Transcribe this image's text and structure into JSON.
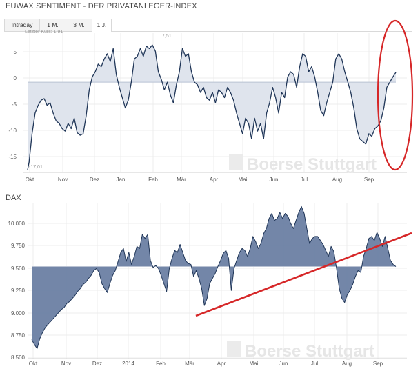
{
  "header": {
    "title": "EUWAX SENTIMENT - DER PRIVATANLEGER-INDEX"
  },
  "tabs": [
    {
      "label": "Intraday",
      "active": false
    },
    {
      "label": "1 M.",
      "active": false
    },
    {
      "label": "3 M.",
      "active": false
    },
    {
      "label": "1 J.",
      "active": true
    }
  ],
  "chart1": {
    "last_label": "Letzter Kurs: 1,91",
    "high_label": "7,51",
    "low_label": "-17,01"
  },
  "chart2": {
    "title": "DAX"
  },
  "watermark": "Boerse Stuttgart",
  "colors": {
    "line": "#1f3557",
    "fill1": "#dfe4ed",
    "fill2": "#6b7fa3",
    "grid": "#ececec",
    "annotation": "#d62728"
  },
  "chart_data": [
    {
      "type": "area",
      "title": "EUWAX SENTIMENT - DER PRIVATANLEGER-INDEX",
      "x_tick_labels": [
        "Okt",
        "Nov",
        "Dez",
        "Jan",
        "Feb",
        "Mär",
        "Apr",
        "Mai",
        "Jun",
        "Jul",
        "Aug",
        "Sep"
      ],
      "y_tick_labels": [
        "5",
        "0",
        "-5",
        "-10",
        "-15"
      ],
      "ylim": [
        -17.5,
        9.5
      ],
      "baseline": 0,
      "points": [
        [
          0,
          -17
        ],
        [
          1,
          -15.5
        ],
        [
          3,
          -10
        ],
        [
          5,
          -6
        ],
        [
          7,
          -4.5
        ],
        [
          9,
          -3.5
        ],
        [
          11,
          -3.2
        ],
        [
          13,
          -4.5
        ],
        [
          15,
          -4
        ],
        [
          17,
          -6
        ],
        [
          19,
          -7.5
        ],
        [
          21,
          -8
        ],
        [
          23,
          -9
        ],
        [
          25,
          -9.5
        ],
        [
          27,
          -8
        ],
        [
          29,
          -9
        ],
        [
          31,
          -7
        ],
        [
          33,
          -9.8
        ],
        [
          35,
          -10.3
        ],
        [
          37,
          -10
        ],
        [
          39,
          -6.5
        ],
        [
          41,
          -1.5
        ],
        [
          43,
          1
        ],
        [
          45,
          2
        ],
        [
          47,
          3.5
        ],
        [
          49,
          3
        ],
        [
          51,
          4.5
        ],
        [
          53,
          5.5
        ],
        [
          55,
          4
        ],
        [
          57,
          6.5
        ],
        [
          59,
          1.5
        ],
        [
          61,
          -1
        ],
        [
          63,
          -3
        ],
        [
          65,
          -5
        ],
        [
          67,
          -3.5
        ],
        [
          69,
          0
        ],
        [
          71,
          4.5
        ],
        [
          73,
          5
        ],
        [
          75,
          6.5
        ],
        [
          77,
          5
        ],
        [
          79,
          7
        ],
        [
          81,
          6.5
        ],
        [
          83,
          7.2
        ],
        [
          85,
          6
        ],
        [
          87,
          2
        ],
        [
          89,
          0.5
        ],
        [
          91,
          -1.5
        ],
        [
          93,
          0
        ],
        [
          95,
          -2.5
        ],
        [
          97,
          -4
        ],
        [
          99,
          -0.5
        ],
        [
          101,
          2
        ],
        [
          103,
          6.5
        ],
        [
          105,
          5
        ],
        [
          107,
          5.5
        ],
        [
          109,
          2
        ],
        [
          111,
          0
        ],
        [
          113,
          -0.5
        ],
        [
          115,
          -2
        ],
        [
          117,
          -1
        ],
        [
          119,
          -3
        ],
        [
          121,
          -3.5
        ],
        [
          123,
          -2
        ],
        [
          125,
          -4
        ],
        [
          127,
          -1.5
        ],
        [
          129,
          -2
        ],
        [
          131,
          -3
        ],
        [
          133,
          -1
        ],
        [
          135,
          -2
        ],
        [
          137,
          -3.5
        ],
        [
          139,
          -6
        ],
        [
          141,
          -8
        ],
        [
          143,
          -10
        ],
        [
          145,
          -7
        ],
        [
          147,
          -8
        ],
        [
          149,
          -11
        ],
        [
          151,
          -7
        ],
        [
          153,
          -9.5
        ],
        [
          155,
          -8
        ],
        [
          157,
          -11
        ],
        [
          159,
          -6
        ],
        [
          161,
          -4
        ],
        [
          163,
          -1
        ],
        [
          165,
          -3
        ],
        [
          167,
          -6
        ],
        [
          169,
          -2
        ],
        [
          171,
          -3
        ],
        [
          173,
          1
        ],
        [
          175,
          2
        ],
        [
          177,
          1.5
        ],
        [
          179,
          -1
        ],
        [
          181,
          3
        ],
        [
          183,
          5.5
        ],
        [
          185,
          5
        ],
        [
          187,
          2
        ],
        [
          189,
          3
        ],
        [
          191,
          1
        ],
        [
          193,
          -2
        ],
        [
          195,
          -5.5
        ],
        [
          197,
          -6.5
        ],
        [
          199,
          -4
        ],
        [
          201,
          -2
        ],
        [
          203,
          0
        ],
        [
          205,
          4.5
        ],
        [
          207,
          5.5
        ],
        [
          209,
          4.5
        ],
        [
          211,
          2
        ],
        [
          213,
          0
        ],
        [
          215,
          -2
        ],
        [
          217,
          -5
        ],
        [
          219,
          -9
        ],
        [
          221,
          -11
        ],
        [
          223,
          -11.5
        ],
        [
          225,
          -12
        ],
        [
          227,
          -10
        ],
        [
          229,
          -10.5
        ],
        [
          231,
          -9
        ],
        [
          233,
          -8.5
        ],
        [
          235,
          -7.5
        ],
        [
          237,
          -5
        ],
        [
          239,
          -1
        ],
        [
          241,
          0
        ],
        [
          243,
          1
        ],
        [
          245,
          1.9
        ]
      ],
      "annotation": "red ellipse around the final rise"
    },
    {
      "type": "area",
      "title": "DAX",
      "x_tick_labels": [
        "Okt",
        "Nov",
        "Dez",
        "2014",
        "Feb",
        "Mär",
        "Apr",
        "Mai",
        "Jun",
        "Jul",
        "Aug",
        "Sep"
      ],
      "y_tick_labels": [
        "10.000",
        "9.750",
        "9.500",
        "9.250",
        "9.000",
        "8.750",
        "8.500"
      ],
      "ylim": [
        8500,
        10050
      ],
      "baseline": 9420,
      "points": [
        [
          0,
          8690
        ],
        [
          2,
          8640
        ],
        [
          4,
          8600
        ],
        [
          6,
          8700
        ],
        [
          8,
          8760
        ],
        [
          10,
          8810
        ],
        [
          12,
          8840
        ],
        [
          14,
          8870
        ],
        [
          16,
          8900
        ],
        [
          18,
          8930
        ],
        [
          20,
          8960
        ],
        [
          22,
          8990
        ],
        [
          24,
          9010
        ],
        [
          26,
          9050
        ],
        [
          28,
          9070
        ],
        [
          30,
          9100
        ],
        [
          32,
          9130
        ],
        [
          34,
          9170
        ],
        [
          36,
          9200
        ],
        [
          38,
          9240
        ],
        [
          40,
          9260
        ],
        [
          42,
          9300
        ],
        [
          44,
          9330
        ],
        [
          46,
          9380
        ],
        [
          48,
          9400
        ],
        [
          50,
          9360
        ],
        [
          52,
          9250
        ],
        [
          54,
          9200
        ],
        [
          56,
          9160
        ],
        [
          58,
          9250
        ],
        [
          60,
          9330
        ],
        [
          62,
          9380
        ],
        [
          64,
          9470
        ],
        [
          66,
          9560
        ],
        [
          68,
          9600
        ],
        [
          70,
          9470
        ],
        [
          72,
          9560
        ],
        [
          74,
          9440
        ],
        [
          76,
          9520
        ],
        [
          78,
          9620
        ],
        [
          80,
          9600
        ],
        [
          82,
          9740
        ],
        [
          84,
          9700
        ],
        [
          86,
          9740
        ],
        [
          88,
          9480
        ],
        [
          90,
          9410
        ],
        [
          92,
          9430
        ],
        [
          94,
          9400
        ],
        [
          96,
          9330
        ],
        [
          98,
          9250
        ],
        [
          100,
          9170
        ],
        [
          102,
          9400
        ],
        [
          104,
          9500
        ],
        [
          106,
          9580
        ],
        [
          108,
          9560
        ],
        [
          110,
          9640
        ],
        [
          112,
          9560
        ],
        [
          114,
          9480
        ],
        [
          116,
          9450
        ],
        [
          118,
          9440
        ],
        [
          120,
          9320
        ],
        [
          122,
          9380
        ],
        [
          124,
          9300
        ],
        [
          126,
          9200
        ],
        [
          128,
          9030
        ],
        [
          130,
          9100
        ],
        [
          132,
          9250
        ],
        [
          134,
          9300
        ],
        [
          136,
          9350
        ],
        [
          138,
          9420
        ],
        [
          140,
          9480
        ],
        [
          142,
          9550
        ],
        [
          144,
          9580
        ],
        [
          146,
          9500
        ],
        [
          148,
          9180
        ],
        [
          150,
          9400
        ],
        [
          152,
          9480
        ],
        [
          154,
          9560
        ],
        [
          156,
          9600
        ],
        [
          158,
          9580
        ],
        [
          160,
          9520
        ],
        [
          162,
          9600
        ],
        [
          164,
          9720
        ],
        [
          166,
          9670
        ],
        [
          168,
          9600
        ],
        [
          170,
          9650
        ],
        [
          172,
          9750
        ],
        [
          174,
          9800
        ],
        [
          176,
          9900
        ],
        [
          178,
          9950
        ],
        [
          180,
          9880
        ],
        [
          182,
          9900
        ],
        [
          184,
          9960
        ],
        [
          186,
          9900
        ],
        [
          188,
          9950
        ],
        [
          190,
          9920
        ],
        [
          192,
          9850
        ],
        [
          194,
          9800
        ],
        [
          196,
          9880
        ],
        [
          198,
          9960
        ],
        [
          200,
          10020
        ],
        [
          202,
          9950
        ],
        [
          204,
          9800
        ],
        [
          206,
          9650
        ],
        [
          208,
          9700
        ],
        [
          210,
          9720
        ],
        [
          212,
          9720
        ],
        [
          214,
          9680
        ],
        [
          216,
          9640
        ],
        [
          218,
          9580
        ],
        [
          220,
          9520
        ],
        [
          222,
          9620
        ],
        [
          224,
          9570
        ],
        [
          226,
          9400
        ],
        [
          228,
          9200
        ],
        [
          230,
          9100
        ],
        [
          232,
          9060
        ],
        [
          234,
          9140
        ],
        [
          236,
          9180
        ],
        [
          238,
          9240
        ],
        [
          240,
          9320
        ],
        [
          242,
          9380
        ],
        [
          244,
          9360
        ],
        [
          246,
          9520
        ],
        [
          248,
          9600
        ],
        [
          250,
          9700
        ],
        [
          252,
          9720
        ],
        [
          254,
          9680
        ],
        [
          256,
          9760
        ],
        [
          258,
          9700
        ],
        [
          260,
          9620
        ],
        [
          262,
          9720
        ],
        [
          264,
          9600
        ],
        [
          266,
          9480
        ],
        [
          268,
          9440
        ],
        [
          270,
          9420
        ]
      ],
      "annotation": "red trend line from about 9.000 (Mär) up to about 9.900 (end)"
    }
  ]
}
